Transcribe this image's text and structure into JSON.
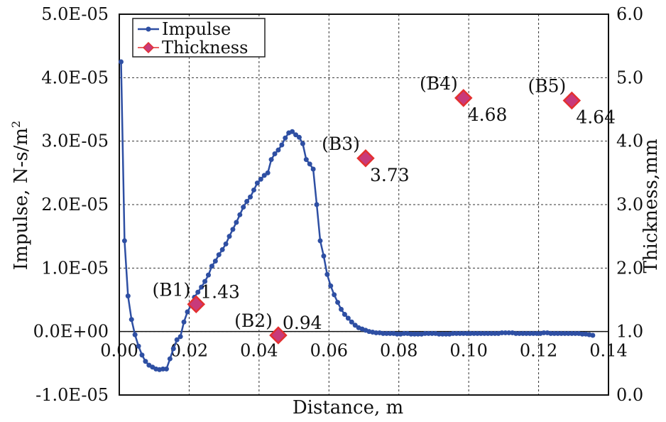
{
  "chart_data": {
    "type": "line",
    "title": "",
    "xlabel": "Distance, m",
    "ylabel_left": "Impulse, N-s/m",
    "ylabel_left_superscript": "2",
    "ylabel_right": "Thickness,mm",
    "xlim": [
      0,
      0.14
    ],
    "ylim_left": [
      -1e-05,
      5e-05
    ],
    "ylim_right": [
      0,
      6
    ],
    "x_ticks": [
      "0.00",
      "0.02",
      "0.04",
      "0.06",
      "0.08",
      "0.10",
      "0.12",
      "0.14"
    ],
    "y_left_ticks": [
      "-1.0E-05",
      "0.0E+00",
      "1.0E-05",
      "2.0E-05",
      "3.0E-05",
      "4.0E-05",
      "5.0E-05"
    ],
    "y_right_ticks": [
      "0.0",
      "1.0",
      "2.0",
      "3.0",
      "4.0",
      "5.0",
      "6.0"
    ],
    "grid": true,
    "legend_position": "top-left",
    "colors": {
      "impulse": "#2e4fa3",
      "thickness_fill": "#c83a7a",
      "thickness_edge": "#e33030",
      "grid": "#333333"
    },
    "series": [
      {
        "name": "Impulse",
        "axis": "left",
        "marker": "circle",
        "x": [
          0.0005,
          0.0015,
          0.0025,
          0.0035,
          0.0045,
          0.0055,
          0.0065,
          0.0075,
          0.0085,
          0.0095,
          0.0105,
          0.0115,
          0.0125,
          0.0135,
          0.0145,
          0.0155,
          0.0165,
          0.0175,
          0.0185,
          0.0195,
          0.0205,
          0.0215,
          0.0225,
          0.0235,
          0.0245,
          0.0255,
          0.0265,
          0.0275,
          0.0285,
          0.0295,
          0.0305,
          0.0315,
          0.0325,
          0.0335,
          0.0345,
          0.0355,
          0.0365,
          0.0375,
          0.0385,
          0.0395,
          0.0405,
          0.0415,
          0.0425,
          0.0435,
          0.0445,
          0.0455,
          0.0465,
          0.0475,
          0.0485,
          0.0495,
          0.0505,
          0.0515,
          0.0525,
          0.0535,
          0.0545,
          0.0555,
          0.0565,
          0.0575,
          0.0585,
          0.0595,
          0.0605,
          0.0615,
          0.0625,
          0.0635,
          0.0645,
          0.0655,
          0.0665,
          0.0675,
          0.0685,
          0.0695,
          0.0705,
          0.0715,
          0.0725,
          0.0735,
          0.0745,
          0.0755,
          0.0765,
          0.0775,
          0.0785,
          0.0795,
          0.0805,
          0.0815,
          0.0825,
          0.0835,
          0.0845,
          0.0855,
          0.0865,
          0.0875,
          0.0885,
          0.0895,
          0.0905,
          0.0915,
          0.0925,
          0.0935,
          0.0945,
          0.0955,
          0.0965,
          0.0975,
          0.0985,
          0.0995,
          0.1005,
          0.1015,
          0.1025,
          0.1035,
          0.1045,
          0.1055,
          0.1065,
          0.1075,
          0.1085,
          0.1095,
          0.1105,
          0.1115,
          0.1125,
          0.1135,
          0.1145,
          0.1155,
          0.1165,
          0.1175,
          0.1185,
          0.1195,
          0.1205,
          0.1215,
          0.1225,
          0.1235,
          0.1245,
          0.1255,
          0.1265,
          0.1275,
          0.1285,
          0.1295,
          0.1305,
          0.1315,
          0.1325,
          0.1335,
          0.1345,
          0.1355
        ],
        "values": [
          4.25e-05,
          1.43e-05,
          5.6e-06,
          1.9e-06,
          -5e-07,
          -2.3e-06,
          -3.7e-06,
          -4.7e-06,
          -5.3e-06,
          -5.6e-06,
          -5.9e-06,
          -6e-06,
          -5.9e-06,
          -5.9e-06,
          -4.3e-06,
          -2.7e-06,
          -1.3e-06,
          -8e-07,
          1.5e-06,
          3.1e-06,
          4.1e-06,
          5.4e-06,
          6.2e-06,
          7e-06,
          7.9e-06,
          8.9e-06,
          1.03e-05,
          1.11e-05,
          1.21e-05,
          1.29e-05,
          1.38e-05,
          1.5e-05,
          1.61e-05,
          1.72e-05,
          1.84e-05,
          1.96e-05,
          2.05e-05,
          2.12e-05,
          2.23e-05,
          2.34e-05,
          2.4e-05,
          2.46e-05,
          2.5e-05,
          2.71e-05,
          2.8e-05,
          2.86e-05,
          2.94e-05,
          3.05e-05,
          3.13e-05,
          3.15e-05,
          3.1e-05,
          3.06e-05,
          2.96e-05,
          2.71e-05,
          2.64e-05,
          2.56e-05,
          2e-05,
          1.43e-05,
          1.19e-05,
          9e-06,
          7.2e-06,
          5.8e-06,
          4.6e-06,
          3.5e-06,
          2.7e-06,
          2.1e-06,
          1.5e-06,
          1e-06,
          6e-07,
          4e-07,
          2e-07,
          0,
          -1e-07,
          -2e-07,
          -2e-07,
          -3e-07,
          -3e-07,
          -3e-07,
          -3e-07,
          -4e-07,
          -4e-07,
          -3e-07,
          -3e-07,
          -4e-07,
          -4e-07,
          -4e-07,
          -4e-07,
          -3e-07,
          -3e-07,
          -3e-07,
          -3e-07,
          -4e-07,
          -4e-07,
          -4e-07,
          -4e-07,
          -3e-07,
          -3e-07,
          -3e-07,
          -3e-07,
          -3e-07,
          -3e-07,
          -3e-07,
          -3e-07,
          -3e-07,
          -3e-07,
          -3e-07,
          -3e-07,
          -3e-07,
          -3e-07,
          -2e-07,
          -2e-07,
          -2e-07,
          -2e-07,
          -3e-07,
          -3e-07,
          -3e-07,
          -3e-07,
          -3e-07,
          -3e-07,
          -3e-07,
          -3e-07,
          -2e-07,
          -2e-07,
          -3e-07,
          -3e-07,
          -3e-07,
          -3e-07,
          -3e-07,
          -3e-07,
          -3e-07,
          -3e-07,
          -3e-07,
          -4e-07,
          -4e-07,
          -5e-07,
          -6e-07
        ]
      },
      {
        "name": "Thickness",
        "axis": "right",
        "marker": "diamond",
        "points": [
          {
            "x": 0.022,
            "y": 1.43,
            "tag": "(B1)",
            "value_label": "1.43"
          },
          {
            "x": 0.0455,
            "y": 0.94,
            "tag": "(B2)",
            "value_label": "0.94"
          },
          {
            "x": 0.0705,
            "y": 3.73,
            "tag": "(B3)",
            "value_label": "3.73"
          },
          {
            "x": 0.0985,
            "y": 4.68,
            "tag": "(B4)",
            "value_label": "4.68"
          },
          {
            "x": 0.1295,
            "y": 4.64,
            "tag": "(B5)",
            "value_label": "4.64"
          }
        ]
      }
    ]
  }
}
